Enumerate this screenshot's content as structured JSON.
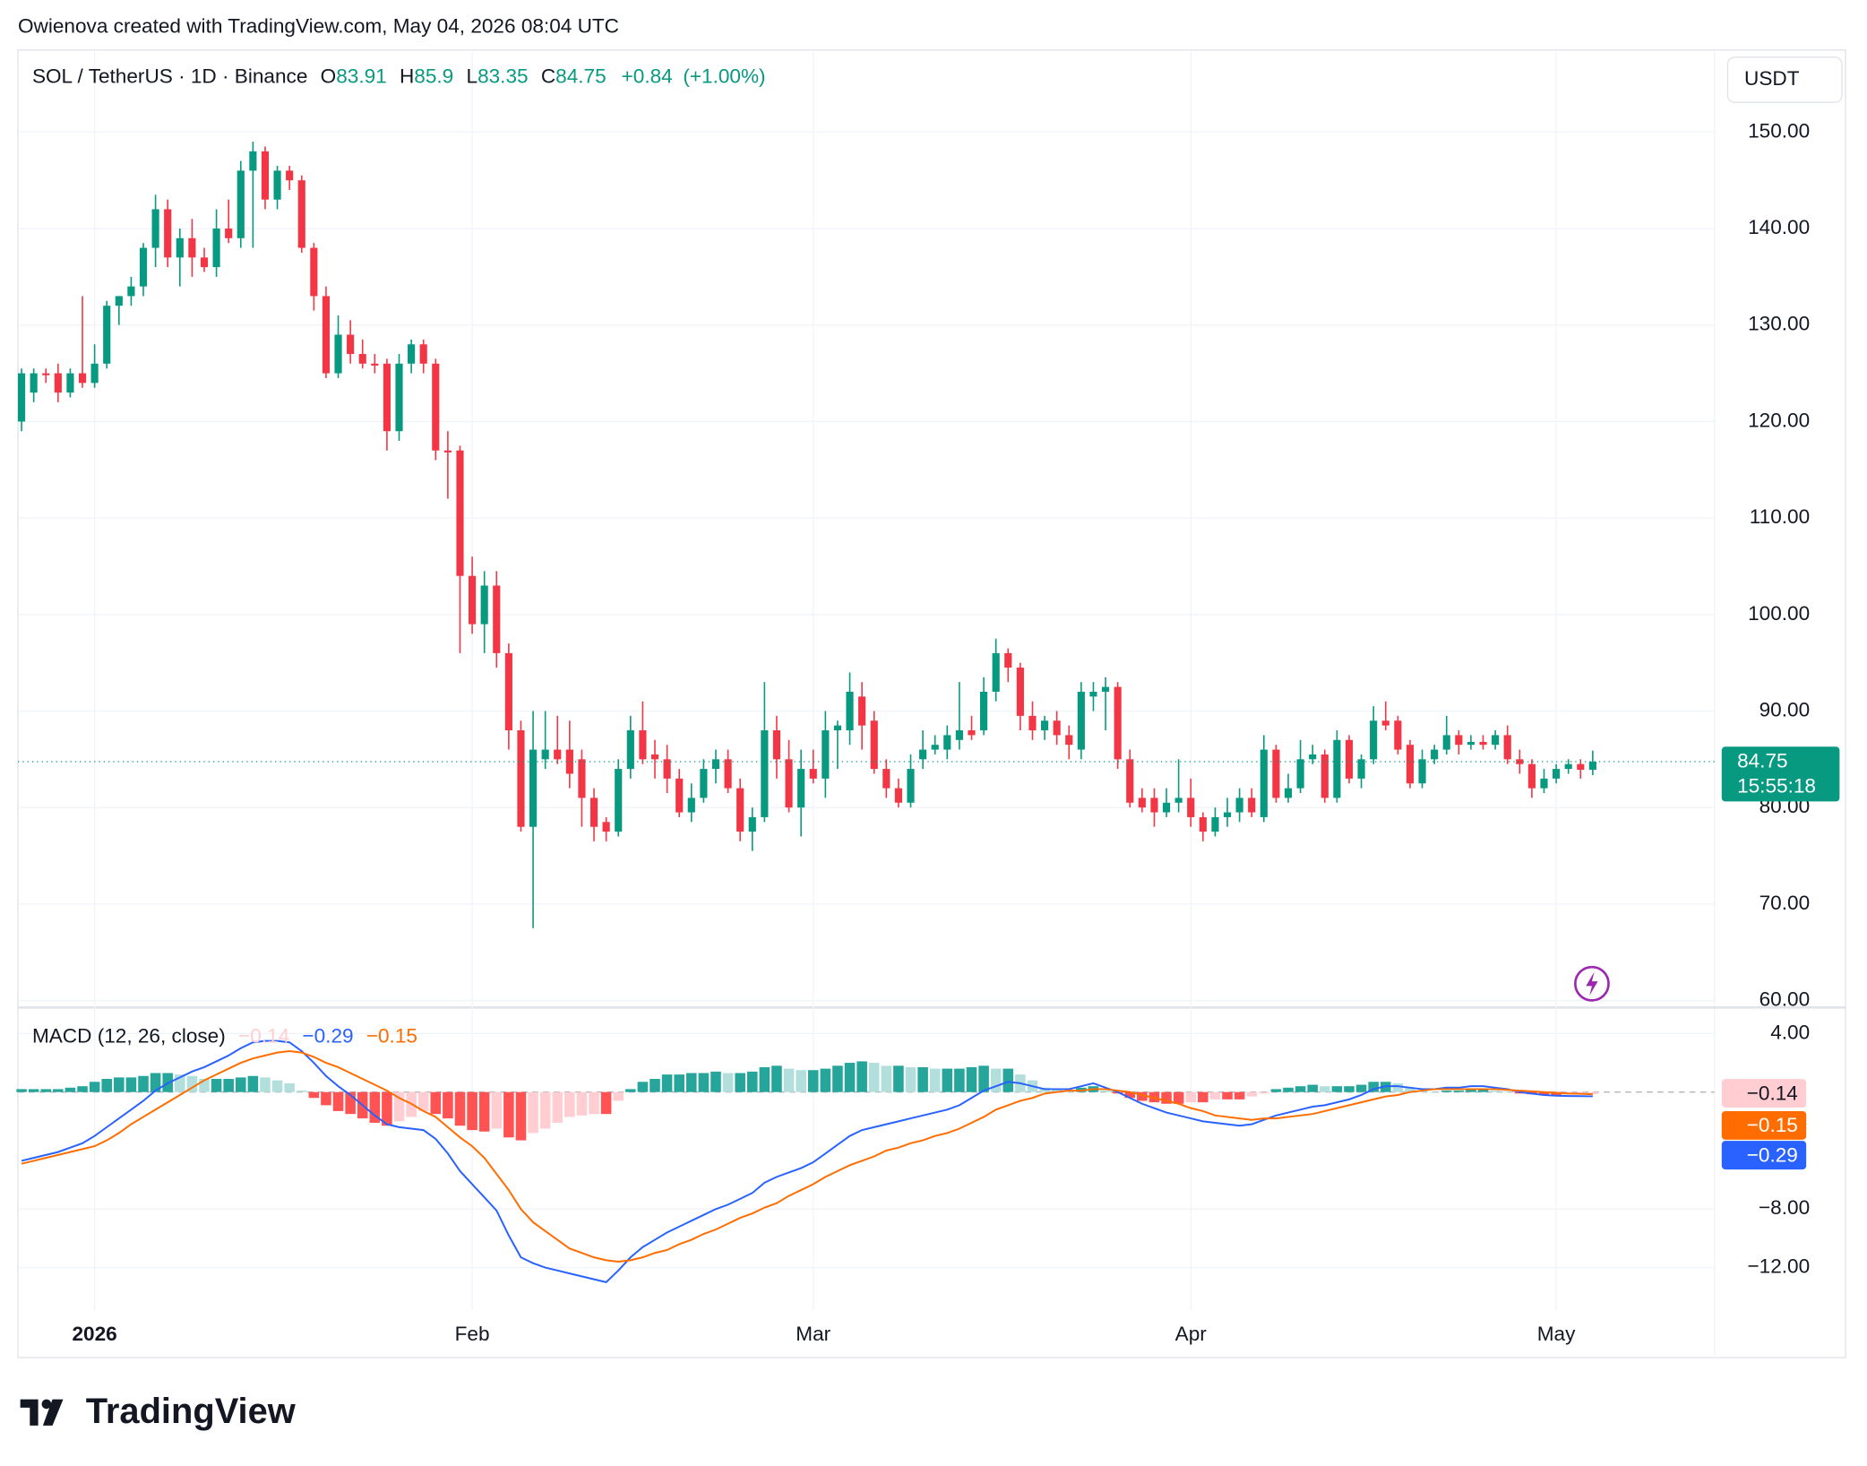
{
  "watermark": "Owienova created with TradingView.com, May 04, 2026 08:04 UTC",
  "brand": "TradingView",
  "chart_data": [
    {
      "type": "candlestick",
      "title": "SOL / TetherUS · 1D · Binance",
      "ohlc_labels": [
        "O",
        "H",
        "L",
        "C"
      ],
      "change": "+0.84",
      "change_pct": "(+1.00%)",
      "currency": "USDT",
      "countdown": "15:55:18",
      "up_color": "#089981",
      "down_color": "#f23645",
      "grid": true,
      "xlim": [
        -0.2,
        139
      ],
      "ylim": [
        59.4,
        158.5
      ],
      "yticks": [
        {
          "value": 150,
          "label": "150.00"
        },
        {
          "value": 140,
          "label": "140.00"
        },
        {
          "value": 130,
          "label": "130.00"
        },
        {
          "value": 120,
          "label": "120.00"
        },
        {
          "value": 110,
          "label": "110.00"
        },
        {
          "value": 100,
          "label": "100.00"
        },
        {
          "value": 90,
          "label": "90.00"
        },
        {
          "value": 80,
          "label": "80.00"
        },
        {
          "value": 70,
          "label": "70.00"
        },
        {
          "value": 60,
          "label": "60.00"
        }
      ],
      "open": [
        120,
        123,
        125,
        125,
        123,
        125,
        124,
        126,
        132,
        133,
        134,
        138,
        142,
        137,
        139,
        137,
        136,
        140,
        139,
        146,
        148,
        143,
        146,
        145,
        138,
        133,
        125,
        129,
        127,
        126,
        126,
        119,
        126,
        128,
        126,
        117,
        117,
        104,
        99,
        103,
        96,
        88,
        78,
        85,
        86,
        86,
        85,
        81,
        78.5,
        77.5,
        84,
        88,
        85.5,
        85,
        83,
        79.5,
        81,
        84,
        85,
        82,
        77.5,
        79,
        88,
        85,
        80,
        84,
        83,
        88,
        88,
        91.5,
        89,
        84,
        82,
        80.5,
        85,
        86,
        86,
        87,
        88,
        88,
        92,
        96,
        94.5,
        89.5,
        88,
        89,
        87.5,
        86,
        91.5,
        92,
        92.5,
        85,
        81,
        81,
        79.5,
        80.5,
        81,
        79,
        77.5,
        79,
        79.5,
        81,
        79,
        86,
        81,
        82,
        85,
        85.5,
        81,
        87,
        83,
        85,
        89,
        89,
        86.5,
        82.5,
        85,
        86,
        87.5,
        86.5,
        86.8,
        86.5,
        87.5,
        85,
        84.5,
        82,
        83,
        84,
        84.5,
        83.91
      ],
      "high": [
        125.5,
        125.5,
        125.5,
        126,
        125.5,
        133,
        128,
        132.5,
        133,
        135,
        138.5,
        143.5,
        143,
        140,
        141,
        138,
        142,
        143,
        147,
        149,
        148.5,
        146.5,
        146.5,
        145.5,
        138.5,
        134,
        131,
        130.5,
        128.5,
        127,
        126.5,
        127,
        128.5,
        128.5,
        126.5,
        119,
        117.5,
        106,
        104.5,
        104.5,
        97,
        89,
        90,
        90,
        89.5,
        89,
        86,
        82,
        79,
        85,
        89.5,
        91,
        87,
        86.5,
        84,
        82.5,
        85,
        86,
        86,
        83,
        80,
        93,
        89.5,
        87,
        86,
        86,
        90,
        89,
        94,
        93,
        90,
        85,
        83,
        85.5,
        88,
        87.5,
        88.5,
        93,
        89.5,
        93.5,
        97.5,
        96.5,
        95,
        91,
        89.5,
        90,
        88.5,
        93,
        93,
        93.5,
        93,
        86,
        82,
        82,
        82,
        85,
        83,
        79.5,
        80,
        81,
        82,
        82,
        87.5,
        86.5,
        83.5,
        87,
        86.5,
        86,
        88,
        87.5,
        85.5,
        90.5,
        91,
        89.5,
        87,
        86,
        86.5,
        89.5,
        88,
        87.5,
        87.5,
        88,
        88.5,
        86,
        85,
        84,
        84.5,
        85,
        85,
        85.9
      ],
      "low": [
        119,
        122,
        124,
        122,
        122.5,
        123.5,
        123.5,
        125.5,
        130,
        132,
        133,
        136,
        136,
        134,
        135,
        135.5,
        135,
        138.5,
        138,
        138,
        142,
        142,
        144,
        137.5,
        131.5,
        124.5,
        124.5,
        126,
        125.5,
        125,
        117,
        118,
        125,
        125,
        116,
        112,
        96,
        98,
        96,
        94.5,
        86,
        77.5,
        67.5,
        84,
        84.5,
        82,
        78,
        76.5,
        76.5,
        77,
        83,
        84.5,
        83,
        81.5,
        79,
        78.5,
        80.5,
        82.5,
        81.5,
        76.5,
        75.5,
        78.5,
        83,
        79.5,
        77,
        82.5,
        81,
        84,
        86.5,
        86,
        83.5,
        81,
        80,
        80,
        84,
        85.5,
        85,
        86,
        87,
        87.5,
        91,
        93,
        88,
        87,
        87,
        86.5,
        85,
        85,
        90,
        88,
        84,
        80,
        79.5,
        78,
        79,
        79.5,
        78,
        76.5,
        77,
        78,
        78.5,
        79,
        78.5,
        80.5,
        80.5,
        81.5,
        84.5,
        80.5,
        80.5,
        82.5,
        82,
        84.5,
        88,
        85.5,
        82,
        82,
        84.5,
        85.5,
        85.5,
        86,
        86,
        86,
        84.5,
        83.5,
        81,
        81.5,
        82.5,
        83.5,
        83,
        83.35
      ],
      "close": [
        125,
        125,
        124.8,
        123,
        125,
        124,
        126,
        132,
        133,
        134,
        138,
        142,
        137,
        139,
        137,
        136,
        140,
        139,
        146,
        148,
        143,
        146,
        145,
        138,
        133,
        125,
        129,
        127,
        126,
        125.8,
        119,
        126,
        128,
        126,
        117,
        116.8,
        104,
        99,
        103,
        96,
        88,
        78,
        86,
        86,
        85,
        83.5,
        81,
        78,
        77.5,
        84,
        88,
        85,
        85,
        83,
        79.5,
        81,
        84,
        85,
        82,
        77.5,
        79,
        88,
        85,
        80,
        84,
        83,
        88,
        88.5,
        92,
        88.5,
        84,
        82,
        80.5,
        84,
        86,
        86.5,
        87.5,
        88,
        87.5,
        92,
        96,
        94.5,
        89.5,
        88,
        89,
        87.5,
        86.5,
        92,
        92,
        92.5,
        85,
        80.5,
        80,
        79.5,
        80.5,
        81,
        79,
        77.5,
        79,
        79.5,
        81,
        79.5,
        86,
        81,
        82,
        85,
        85.5,
        81,
        87,
        83,
        85,
        89,
        88.5,
        86,
        82.5,
        85,
        86,
        87.5,
        86.5,
        86.8,
        86.5,
        87.5,
        85,
        84.5,
        82,
        83,
        84,
        84.5,
        83.91,
        84.75
      ]
    },
    {
      "type": "macd",
      "title": "MACD (12, 26, close)",
      "xlim": [
        -0.2,
        139
      ],
      "ylim": [
        -14.9,
        5.7
      ],
      "yticks": [
        {
          "value": 4,
          "label": "4.00"
        },
        {
          "value": -8,
          "label": "−8.00"
        },
        {
          "value": -12,
          "label": "−12.00"
        }
      ],
      "xticks": [
        {
          "value": 6,
          "label": "2026"
        },
        {
          "value": 37,
          "label": "Feb"
        },
        {
          "value": 65,
          "label": "Mar"
        },
        {
          "value": 96,
          "label": "Apr"
        },
        {
          "value": 126,
          "label": "May"
        }
      ],
      "series": [
        {
          "kind": "histogram",
          "colors": [
            "#26a69a",
            "#b2dfdb",
            "#ff5252",
            "#ffcdd2"
          ],
          "color": "#ffcdd2",
          "last_label": "−0.14",
          "values": [
            0.2,
            0.2,
            0.2,
            0.2,
            0.3,
            0.4,
            0.7,
            0.9,
            1.0,
            1.0,
            1.1,
            1.3,
            1.3,
            1.2,
            1.1,
            0.9,
            0.9,
            0.9,
            1.0,
            1.1,
            1.0,
            0.8,
            0.6,
            0.1,
            -0.4,
            -0.9,
            -1.3,
            -1.5,
            -1.8,
            -2.1,
            -2.3,
            -2.0,
            -1.7,
            -1.3,
            -1.5,
            -1.8,
            -2.3,
            -2.6,
            -2.7,
            -2.5,
            -3.1,
            -3.3,
            -2.8,
            -2.5,
            -2.1,
            -1.7,
            -1.6,
            -1.5,
            -1.5,
            -0.6,
            0.2,
            0.7,
            0.9,
            1.2,
            1.2,
            1.3,
            1.3,
            1.4,
            1.3,
            1.3,
            1.4,
            1.7,
            1.8,
            1.6,
            1.5,
            1.5,
            1.6,
            1.8,
            2.0,
            2.1,
            2.0,
            1.8,
            1.8,
            1.7,
            1.7,
            1.6,
            1.6,
            1.6,
            1.7,
            1.8,
            1.6,
            1.6,
            1.2,
            0.8,
            0.3,
            0.2,
            0.1,
            0.3,
            0.4,
            0.1,
            -0.1,
            -0.4,
            -0.6,
            -0.7,
            -0.8,
            -0.8,
            -0.7,
            -0.7,
            -0.5,
            -0.5,
            -0.5,
            -0.3,
            -0.1,
            0.2,
            0.3,
            0.4,
            0.5,
            0.4,
            0.4,
            0.4,
            0.5,
            0.7,
            0.7,
            0.6,
            0.3,
            0.1,
            0.0,
            0.1,
            0.1,
            0.2,
            0.2,
            0.1,
            0.05,
            -0.1,
            -0.15,
            -0.2,
            -0.2,
            -0.17,
            -0.16,
            -0.14
          ]
        },
        {
          "kind": "line",
          "color": "#2962ff",
          "last_label": "−0.29",
          "values": [
            -4.7,
            -4.5,
            -4.3,
            -4.1,
            -3.8,
            -3.5,
            -3.0,
            -2.4,
            -1.8,
            -1.2,
            -0.6,
            0.1,
            0.6,
            1.0,
            1.4,
            1.7,
            2.1,
            2.5,
            3.0,
            3.4,
            3.5,
            3.5,
            3.4,
            2.8,
            2.0,
            1.1,
            0.4,
            -0.2,
            -0.9,
            -1.6,
            -2.2,
            -2.4,
            -2.5,
            -2.6,
            -3.2,
            -4.2,
            -5.4,
            -6.3,
            -7.2,
            -8.1,
            -9.8,
            -11.3,
            -11.7,
            -12.0,
            -12.2,
            -12.4,
            -12.6,
            -12.8,
            -13.0,
            -12.2,
            -11.3,
            -10.6,
            -10.1,
            -9.6,
            -9.2,
            -8.8,
            -8.4,
            -8.0,
            -7.7,
            -7.3,
            -6.9,
            -6.2,
            -5.8,
            -5.5,
            -5.2,
            -4.8,
            -4.2,
            -3.6,
            -3.0,
            -2.6,
            -2.4,
            -2.2,
            -2.0,
            -1.8,
            -1.6,
            -1.4,
            -1.2,
            -0.9,
            -0.4,
            0.1,
            0.4,
            0.7,
            0.6,
            0.4,
            0.2,
            0.2,
            0.2,
            0.4,
            0.6,
            0.3,
            0.0,
            -0.4,
            -0.8,
            -1.1,
            -1.4,
            -1.6,
            -1.8,
            -2.0,
            -2.1,
            -2.2,
            -2.3,
            -2.2,
            -1.9,
            -1.6,
            -1.4,
            -1.2,
            -1.0,
            -0.9,
            -0.7,
            -0.5,
            -0.2,
            0.2,
            0.4,
            0.4,
            0.3,
            0.2,
            0.2,
            0.3,
            0.3,
            0.4,
            0.4,
            0.3,
            0.2,
            0.0,
            -0.1,
            -0.2,
            -0.25,
            -0.27,
            -0.28,
            -0.29
          ]
        },
        {
          "kind": "line",
          "color": "#ff6d00",
          "last_label": "−0.15",
          "values": [
            -4.9,
            -4.7,
            -4.5,
            -4.3,
            -4.1,
            -3.9,
            -3.7,
            -3.3,
            -2.8,
            -2.2,
            -1.7,
            -1.2,
            -0.7,
            -0.2,
            0.3,
            0.8,
            1.2,
            1.6,
            2.0,
            2.3,
            2.5,
            2.7,
            2.8,
            2.7,
            2.4,
            2.0,
            1.7,
            1.3,
            0.9,
            0.5,
            0.1,
            -0.4,
            -0.8,
            -1.3,
            -1.7,
            -2.4,
            -3.1,
            -3.7,
            -4.5,
            -5.6,
            -6.7,
            -8.0,
            -8.9,
            -9.5,
            -10.1,
            -10.7,
            -11.0,
            -11.3,
            -11.5,
            -11.6,
            -11.5,
            -11.3,
            -11.0,
            -10.8,
            -10.4,
            -10.1,
            -9.7,
            -9.4,
            -9.0,
            -8.6,
            -8.3,
            -7.9,
            -7.6,
            -7.1,
            -6.7,
            -6.3,
            -5.8,
            -5.4,
            -5.0,
            -4.7,
            -4.4,
            -4.0,
            -3.8,
            -3.5,
            -3.3,
            -3.0,
            -2.8,
            -2.5,
            -2.1,
            -1.7,
            -1.2,
            -0.9,
            -0.6,
            -0.4,
            -0.1,
            0.0,
            0.1,
            0.1,
            0.2,
            0.2,
            0.1,
            0.0,
            -0.2,
            -0.4,
            -0.6,
            -0.8,
            -1.1,
            -1.3,
            -1.6,
            -1.7,
            -1.8,
            -1.9,
            -1.8,
            -1.8,
            -1.7,
            -1.6,
            -1.5,
            -1.3,
            -1.1,
            -0.9,
            -0.7,
            -0.5,
            -0.3,
            -0.2,
            0.0,
            0.1,
            0.2,
            0.2,
            0.2,
            0.2,
            0.2,
            0.2,
            0.15,
            0.1,
            0.05,
            0.0,
            -0.05,
            -0.1,
            -0.12,
            -0.15
          ]
        }
      ]
    }
  ]
}
